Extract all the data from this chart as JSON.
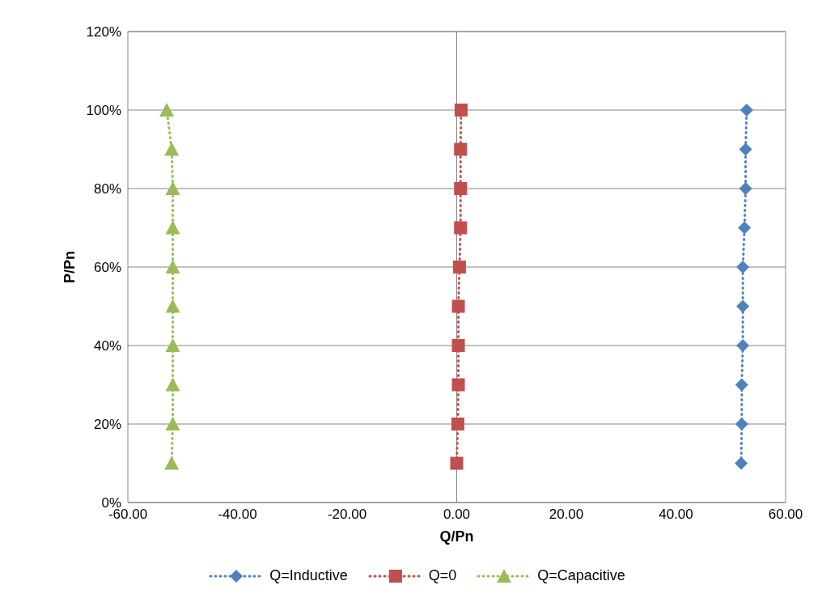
{
  "chart_data": {
    "type": "line",
    "xlabel": "Q/Pn",
    "ylabel": "P/Pn",
    "xlim": [
      -60,
      60
    ],
    "xticks": [
      {
        "value": -60,
        "label": "-60.00"
      },
      {
        "value": -40,
        "label": "-40.00"
      },
      {
        "value": -20,
        "label": "-20.00"
      },
      {
        "value": 0,
        "label": "0.00"
      },
      {
        "value": 20,
        "label": "20.00"
      },
      {
        "value": 40,
        "label": "40.00"
      },
      {
        "value": 60,
        "label": "60.00"
      }
    ],
    "ylim": [
      0,
      120
    ],
    "yticks": [
      {
        "value": 0,
        "label": "0%"
      },
      {
        "value": 20,
        "label": "20%"
      },
      {
        "value": 40,
        "label": "40%"
      },
      {
        "value": 60,
        "label": "60%"
      },
      {
        "value": 80,
        "label": "80%"
      },
      {
        "value": 100,
        "label": "100%"
      },
      {
        "value": 120,
        "label": "120%"
      }
    ],
    "grid": "y",
    "legend": "bottom",
    "line_style": "dotted",
    "ref_lines": [
      {
        "axis": "x",
        "value": 0,
        "color": "#868686"
      }
    ],
    "series": [
      {
        "name": "Q=Inductive",
        "color": "#4f81bd",
        "marker": "diamond",
        "x": [
          51.9,
          52.0,
          52.0,
          52.2,
          52.2,
          52.2,
          52.5,
          52.7,
          52.7,
          52.9
        ],
        "values": [
          10,
          20,
          30,
          40,
          50,
          60,
          70,
          80,
          90,
          100
        ]
      },
      {
        "name": "Q=0",
        "color": "#c0504d",
        "marker": "square",
        "x": [
          0.0,
          0.2,
          0.3,
          0.3,
          0.3,
          0.5,
          0.7,
          0.7,
          0.7,
          0.8
        ],
        "values": [
          10,
          20,
          30,
          40,
          50,
          60,
          70,
          80,
          90,
          100
        ]
      },
      {
        "name": "Q=Capacitive",
        "color": "#9bbb59",
        "marker": "triangle",
        "x": [
          -52.0,
          -51.8,
          -51.8,
          -51.8,
          -51.8,
          -51.8,
          -51.8,
          -51.8,
          -52.0,
          -52.9
        ],
        "values": [
          10,
          20,
          30,
          40,
          50,
          60,
          70,
          80,
          90,
          100
        ]
      }
    ]
  }
}
